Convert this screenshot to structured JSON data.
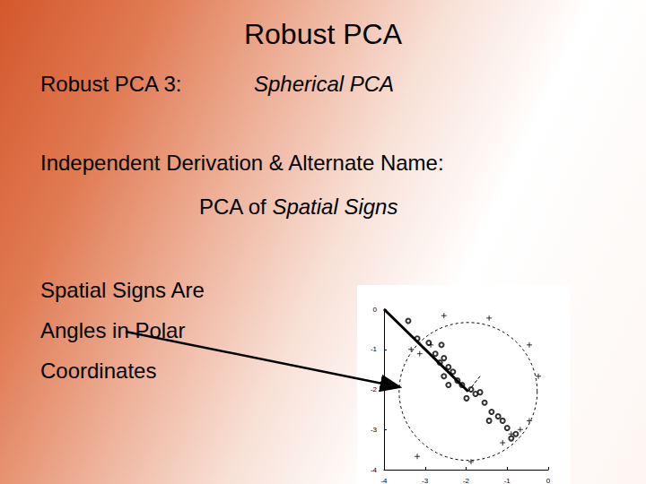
{
  "slide": {
    "title": "Robust PCA",
    "heading": {
      "label": "Robust PCA 3:",
      "name": "Spherical PCA"
    },
    "derivation": {
      "label": "Independent Derivation & Alternate Name:",
      "prefix": "PCA of",
      "name": "Spatial Signs"
    },
    "note": [
      "Spatial Signs Are",
      "Angles in Polar",
      "Coordinates"
    ]
  },
  "chart_data": {
    "type": "scatter",
    "xlim": [
      -4,
      0
    ],
    "ylim": [
      -4,
      0
    ],
    "xticks": [
      -4,
      -3,
      -2,
      -1,
      0
    ],
    "yticks": [
      -4,
      -3,
      -2,
      -1,
      0
    ],
    "grid": false,
    "series": [
      {
        "type": "scatter",
        "marker": "circle",
        "color": "#000000",
        "x": [
          -3.41,
          -3.19,
          -2.91,
          -2.75,
          -2.64,
          -2.54,
          -2.43,
          -2.54,
          -2.32,
          -2.21,
          -2.1,
          -1.88,
          -1.77,
          -1.66,
          -1.99,
          -1.55,
          -1.38,
          -1.22,
          -1.11,
          -1.0,
          -0.79,
          -0.9,
          -1.44,
          -2.43,
          -2.6
        ],
        "values": [
          -0.29,
          -0.73,
          -0.84,
          -1.11,
          -1.33,
          -1.22,
          -1.44,
          -1.67,
          -1.56,
          -1.78,
          -1.89,
          -2.0,
          -2.11,
          -2.07,
          -2.22,
          -2.33,
          -2.56,
          -2.67,
          -2.78,
          -2.96,
          -3.11,
          -3.22,
          -2.78,
          -1.89,
          -0.89
        ]
      },
      {
        "type": "scatter",
        "marker": "cross",
        "color": "#000000",
        "x": [
          -3.34,
          -3.13,
          -2.86,
          -0.9,
          -1.11,
          -0.68,
          -0.46,
          -2.54,
          -1.44,
          -0.46,
          -0.24,
          -3.19,
          -1.88
        ],
        "values": [
          -1.0,
          -1.11,
          -0.89,
          -3.11,
          -3.33,
          -3.0,
          -2.78,
          -0.16,
          -0.22,
          -0.89,
          -1.67,
          -3.67,
          -3.8
        ]
      },
      {
        "type": "line",
        "line_style": "solid",
        "color": "#000000",
        "x": [
          -4,
          -1.95
        ],
        "values": [
          0,
          -2.05
        ]
      },
      {
        "type": "line",
        "line_style": "dashed",
        "color": "#000000",
        "x": [
          -1.95,
          -1.66
        ],
        "values": [
          -2.05,
          -1.67
        ]
      }
    ],
    "circle": {
      "center": [
        -1.95,
        -2.05
      ],
      "radius": 1.7,
      "line_style": "dashed",
      "color": "#000000"
    }
  }
}
